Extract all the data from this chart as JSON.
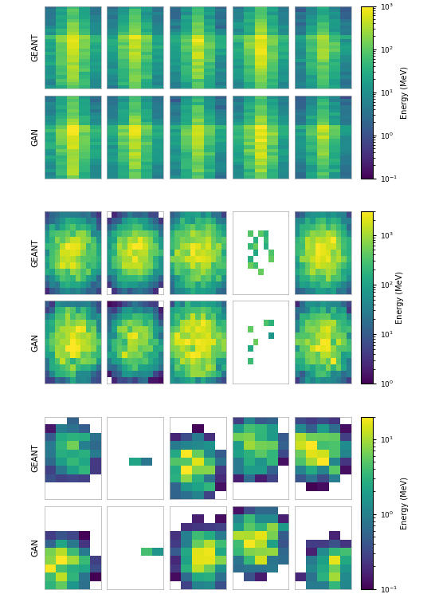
{
  "sections": [
    {
      "geant_label": "GEANT",
      "gan_label": "GAN",
      "vmin": 0.1,
      "vmax": 1000,
      "cbar_ticks": [
        0.1,
        1.0,
        10.0,
        100.0,
        1000.0
      ],
      "cbar_ticklabels": [
        "$10^{-1}$",
        "$10^{0}$",
        "$10^{1}$",
        "$10^{2}$",
        "$10^{3}$"
      ],
      "cbar_label": "Energy (MeV)",
      "nrows": 25,
      "ncols": 5
    },
    {
      "geant_label": "GEANT",
      "gan_label": "GAN",
      "vmin": 1.0,
      "vmax": 3000,
      "cbar_ticks": [
        1.0,
        10.0,
        100.0,
        1000.0
      ],
      "cbar_ticklabels": [
        "$10^{0}$",
        "$10^{1}$",
        "$10^{2}$",
        "$10^{3}$"
      ],
      "cbar_label": "Energy (MeV)",
      "nrows": 13,
      "ncols": 11
    },
    {
      "geant_label": "GEANT",
      "gan_label": "GAN",
      "vmin": 0.1,
      "vmax": 20,
      "cbar_ticks": [
        0.1,
        1.0,
        10.0
      ],
      "cbar_ticklabels": [
        "$10^{-1}$",
        "$10^{0}$",
        "$10^{1}$"
      ],
      "cbar_label": "Energy (MeV)",
      "nrows": 10,
      "ncols": 5
    }
  ],
  "cmap": "viridis",
  "n_samples": 5,
  "background": "white"
}
